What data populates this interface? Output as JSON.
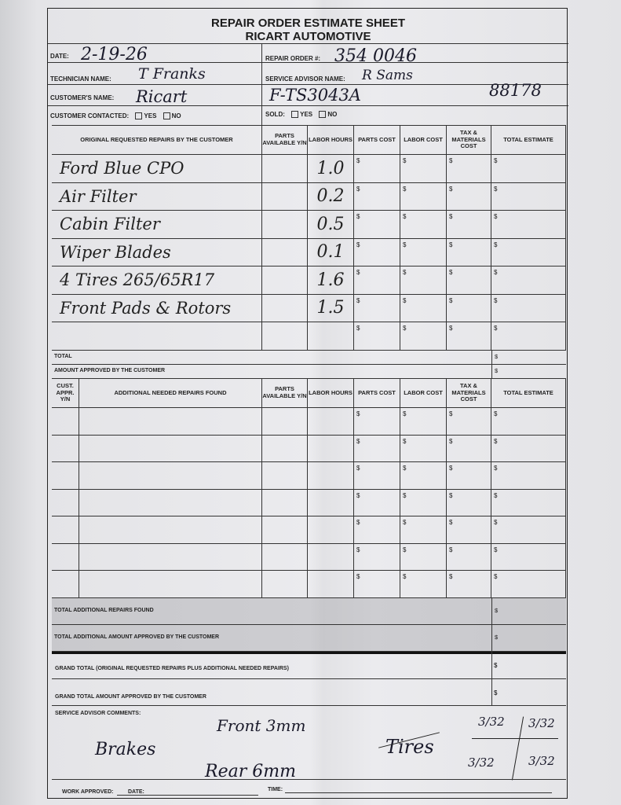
{
  "title": "REPAIR ORDER ESTIMATE SHEET",
  "company": "RICART AUTOMOTIVE",
  "header": {
    "date_label": "DATE:",
    "date_value": "2-19-26",
    "repair_order_label": "REPAIR ORDER #:",
    "repair_order_value": "354 0046",
    "technician_label": "TECHNICIAN NAME:",
    "technician_value": "T Franks",
    "advisor_label": "SERVICE ADVISOR NAME:",
    "advisor_value": "R Sams",
    "customer_label": "CUSTOMER'S NAME:",
    "customer_value": "Ricart",
    "stock_value": "F-TS3043A",
    "mileage_value": "88178",
    "contacted_label": "CUSTOMER CONTACTED:",
    "yes": "YES",
    "no": "NO",
    "sold_label": "SOLD:"
  },
  "table1": {
    "columns": [
      "ORIGINAL REQUESTED REPAIRS BY THE CUSTOMER",
      "PARTS AVAILABLE Y/N",
      "LABOR HOURS",
      "PARTS COST",
      "LABOR COST",
      "TAX & MATERIALS COST",
      "TOTAL ESTIMATE"
    ],
    "rows": [
      {
        "repair": "Ford Blue CPO",
        "hours": "1.0"
      },
      {
        "repair": "Air Filter",
        "hours": "0.2"
      },
      {
        "repair": "Cabin Filter",
        "hours": "0.5"
      },
      {
        "repair": "Wiper Blades",
        "hours": "0.1"
      },
      {
        "repair": "4 Tires 265/65R17",
        "hours": "1.6"
      },
      {
        "repair": "Front Pads & Rotors",
        "hours": "1.5"
      },
      {
        "repair": "",
        "hours": ""
      }
    ],
    "currency": "$",
    "total_label": "TOTAL",
    "approved_label": "AMOUNT APPROVED BY THE CUSTOMER"
  },
  "table2": {
    "columns": [
      "CUST. APPR. Y/N",
      "ADDITIONAL NEEDED REPAIRS FOUND",
      "PARTS AVAILABLE Y/N",
      "LABOR HOURS",
      "PARTS COST",
      "LABOR COST",
      "TAX & MATERIALS COST",
      "TOTAL ESTIMATE"
    ],
    "row_count": 7,
    "total_label": "TOTAL ADDITIONAL REPAIRS FOUND",
    "approved_label": "TOTAL ADDITIONAL AMOUNT APPROVED BY THE CUSTOMER"
  },
  "grand_total_label": "GRAND TOTAL (Original requested repairs plus additional needed repairs)",
  "grand_approved_label": "GRAND TOTAL AMOUNT APPROVED BY THE CUSTOMER",
  "comments": {
    "label": "SERVICE ADVISOR COMMENTS:",
    "brakes": "Brakes",
    "front": "Front 3mm",
    "rear": "Rear 6mm",
    "tires": "Tires",
    "tire_values": [
      "3/32",
      "3/32",
      "3/32",
      "3/32"
    ]
  },
  "footer": {
    "work_approved": "WORK APPROVED:",
    "date": "DATE:",
    "time": "TIME:"
  }
}
